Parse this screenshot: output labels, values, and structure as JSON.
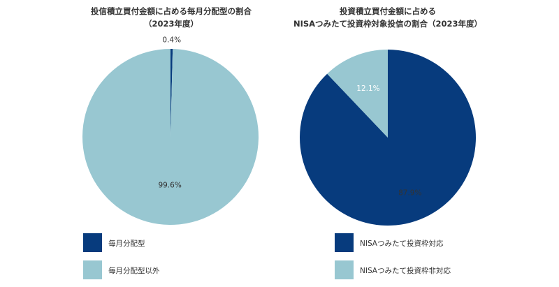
{
  "colors": {
    "dark": "#073b7d",
    "light": "#98c7d1",
    "text": "#333333"
  },
  "chart_data": [
    {
      "type": "pie",
      "title_lines": [
        "投信積立買付金額に占める毎月分配型の割合",
        "（2023年度）"
      ],
      "slices": [
        {
          "label": "毎月分配型",
          "value": 0.4,
          "value_label": "0.4%",
          "color": "#073b7d"
        },
        {
          "label": "毎月分配型以外",
          "value": 99.6,
          "value_label": "99.6%",
          "color": "#98c7d1"
        }
      ],
      "legend": [
        "毎月分配型",
        "毎月分配型以外"
      ],
      "legend_placement": "bottom-left"
    },
    {
      "type": "pie",
      "title_lines": [
        "投資積立買付金額に占める",
        "NISAつみたて投資枠対象投信の割合（2023年度）"
      ],
      "slices": [
        {
          "label": "NISAつみたて投資枠対応",
          "value": 87.9,
          "value_label": "87.9%",
          "color": "#073b7d"
        },
        {
          "label": "NISAつみたて投資枠非対応",
          "value": 12.1,
          "value_label": "12.1%",
          "color": "#98c7d1"
        }
      ],
      "legend": [
        "NISAつみたて投資枠対応",
        "NISAつみたて投資枠非対応"
      ],
      "legend_placement": "bottom-left"
    }
  ]
}
